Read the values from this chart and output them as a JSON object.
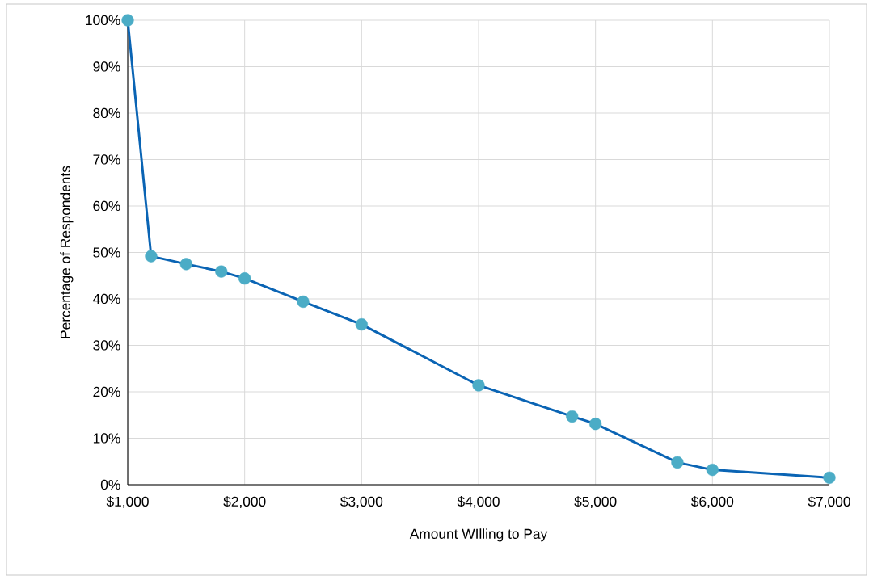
{
  "chart_data": {
    "type": "line",
    "xlabel": "Amount WIlling to Pay",
    "ylabel": "Percentage of Respondents",
    "x": [
      1000,
      1200,
      1500,
      1800,
      2000,
      2500,
      3000,
      4000,
      4800,
      5000,
      5700,
      6000,
      7000
    ],
    "series": [
      {
        "color": "#0a64b4",
        "colors": [
          "#4bacc6",
          "#4bacc6",
          "#4bacc6",
          "#4bacc6",
          "#4bacc6",
          "#4bacc6",
          "#4bacc6",
          "#4bacc6",
          "#4bacc6",
          "#4bacc6",
          "#4bacc6",
          "#4bacc6",
          "#4bacc6"
        ],
        "values": [
          100,
          49.2,
          47.5,
          45.9,
          44.4,
          39.4,
          34.5,
          21.4,
          14.7,
          13.1,
          4.8,
          3.2,
          1.5
        ]
      }
    ],
    "xlim": [
      1000,
      7000
    ],
    "xticks": [
      {
        "value": 1000,
        "label": "$1,000"
      },
      {
        "value": 2000,
        "label": "$2,000"
      },
      {
        "value": 3000,
        "label": "$3,000"
      },
      {
        "value": 4000,
        "label": "$4,000"
      },
      {
        "value": 5000,
        "label": "$5,000"
      },
      {
        "value": 6000,
        "label": "$6,000"
      },
      {
        "value": 7000,
        "label": "$7,000"
      }
    ],
    "ylim": [
      0,
      100
    ],
    "yticks": [
      {
        "value": 0,
        "label": "0%"
      },
      {
        "value": 10,
        "label": "10%"
      },
      {
        "value": 20,
        "label": "20%"
      },
      {
        "value": 30,
        "label": "30%"
      },
      {
        "value": 40,
        "label": "40%"
      },
      {
        "value": 50,
        "label": "50%"
      },
      {
        "value": 60,
        "label": "60%"
      },
      {
        "value": 70,
        "label": "70%"
      },
      {
        "value": 80,
        "label": "80%"
      },
      {
        "value": 90,
        "label": "90%"
      },
      {
        "value": 100,
        "label": "100%"
      }
    ],
    "grid": true,
    "marker": "circle",
    "line_style": "solid"
  }
}
